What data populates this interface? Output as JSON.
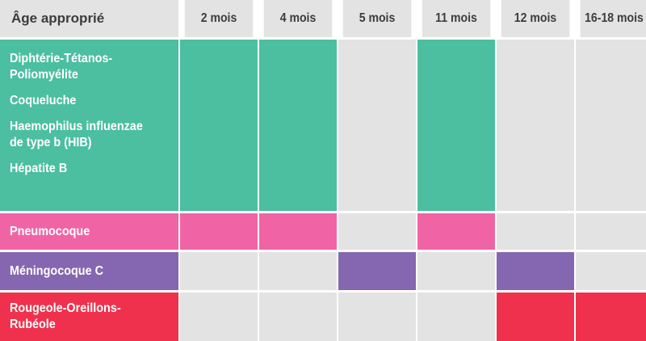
{
  "colors": {
    "header_bg": "#e3e3e4",
    "empty_cell": "#e3e3e4",
    "green": "#4bbfa0",
    "pink": "#f064a6",
    "purple": "#8567b1",
    "red": "#f0314d",
    "header_text": "#3c3c3e",
    "label_text": "#ffffff"
  },
  "header": {
    "age_label": "Âge approprié",
    "columns": [
      "2 mois",
      "4 mois",
      "5 mois",
      "11 mois",
      "12 mois",
      "16-18 mois"
    ]
  },
  "rows": [
    {
      "color": "green",
      "labels": [
        [
          "Diphtérie-Tétanos-",
          "Poliomyélite"
        ],
        [
          "Coqueluche"
        ],
        [
          "Haemophilus influenzae",
          "de type b (HIB)"
        ],
        [
          "Hépatite B"
        ]
      ],
      "filled": [
        true,
        true,
        false,
        true,
        false,
        false
      ]
    },
    {
      "color": "pink",
      "labels": [
        [
          "Pneumocoque"
        ]
      ],
      "filled": [
        true,
        true,
        false,
        true,
        false,
        false
      ]
    },
    {
      "color": "purple",
      "labels": [
        [
          "Méningocoque C"
        ]
      ],
      "filled": [
        false,
        false,
        true,
        false,
        true,
        false
      ]
    },
    {
      "color": "red",
      "labels": [
        [
          "Rougeole-Oreillons-",
          "Rubéole"
        ]
      ],
      "filled": [
        false,
        false,
        false,
        false,
        true,
        true
      ]
    }
  ]
}
